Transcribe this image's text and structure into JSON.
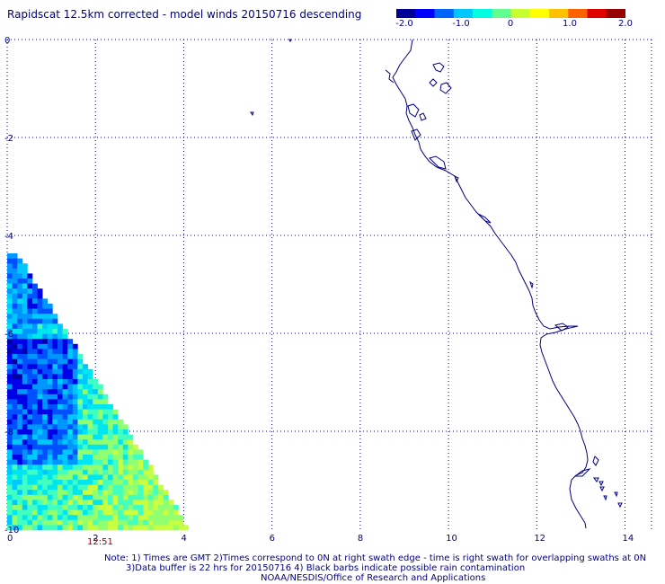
{
  "title": "Rapidscat 12.5km corrected - model winds 20150716 descending",
  "colorbar": {
    "ticks": [
      "-2.0",
      "-1.0",
      "0",
      "1.0",
      "2.0"
    ],
    "tick_values": [
      -2.0,
      -1.0,
      0,
      1.0,
      2.0
    ],
    "range": [
      -2.0,
      2.0
    ],
    "colors": [
      "#000096",
      "#0000ff",
      "#0064ff",
      "#00c8ff",
      "#00ffe0",
      "#60ff90",
      "#c8ff30",
      "#ffff00",
      "#ffc000",
      "#ff6000",
      "#e00000",
      "#960000"
    ]
  },
  "axes": {
    "x_ticks": [
      "0",
      "2",
      "4",
      "6",
      "8",
      "10",
      "12",
      "14"
    ],
    "x_values": [
      0,
      2,
      4,
      6,
      8,
      10,
      12,
      14
    ],
    "y_ticks": [
      "0",
      "-2",
      "-4",
      "-6",
      "-8",
      "-10"
    ],
    "y_values": [
      0,
      -2,
      -4,
      -6,
      -8,
      -10
    ],
    "xlim": [
      0,
      14.6
    ],
    "ylim": [
      -10,
      0
    ],
    "grid": true
  },
  "swath_time": "12:51",
  "notes": {
    "line1": "Note: 1) Times are GMT 2)Times correspond to 0N at right swath edge - time is right swath for overlapping swaths at 0N",
    "line2": "3)Data buffer is 22 hrs for 20150716 4) Black barbs indicate possible rain contamination",
    "line3": "NOAA/NESDIS/Office of Research and Applications"
  }
}
